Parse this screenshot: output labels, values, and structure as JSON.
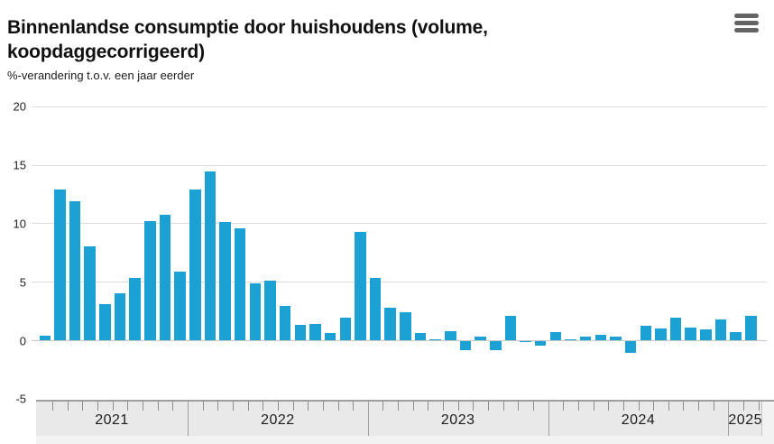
{
  "header": {
    "title": "Binnenlandse consumptie door huishoudens (volume, koopdaggecorrigeerd)",
    "menu_label": "menu"
  },
  "chart_data": {
    "type": "bar",
    "title": "Binnenlandse consumptie door huishoudens (volume, koopdaggecorrigeerd)",
    "subtitle": "%-verandering t.o.v. een jaar eerder",
    "unit": "%",
    "grid": true,
    "legend": "none",
    "bar_color": "#1ba1d4",
    "ylim": [
      -5,
      20
    ],
    "y_ticks": [
      20,
      15,
      10,
      5,
      0,
      -5
    ],
    "x_year_labels": [
      "2021",
      "2022",
      "2023",
      "2024",
      "2025"
    ],
    "x": [
      "2021-03",
      "2021-04",
      "2021-05",
      "2021-06",
      "2021-07",
      "2021-08",
      "2021-09",
      "2021-10",
      "2021-11",
      "2021-12",
      "2022-01",
      "2022-02",
      "2022-03",
      "2022-04",
      "2022-05",
      "2022-06",
      "2022-07",
      "2022-08",
      "2022-09",
      "2022-10",
      "2022-11",
      "2022-12",
      "2023-01",
      "2023-02",
      "2023-03",
      "2023-04",
      "2023-05",
      "2023-06",
      "2023-07",
      "2023-08",
      "2023-09",
      "2023-10",
      "2023-11",
      "2023-12",
      "2024-01",
      "2024-02",
      "2024-03",
      "2024-04",
      "2024-05",
      "2024-06",
      "2024-07",
      "2024-08",
      "2024-09",
      "2024-10",
      "2024-11",
      "2024-12",
      "2025-01",
      "2025-02"
    ],
    "values": [
      0.4,
      12.9,
      11.9,
      8.0,
      3.1,
      4.0,
      5.3,
      10.2,
      10.7,
      5.9,
      12.9,
      14.4,
      10.1,
      9.6,
      4.9,
      5.1,
      2.9,
      1.3,
      1.4,
      0.6,
      1.9,
      9.3,
      5.3,
      2.8,
      2.4,
      0.6,
      0.1,
      0.8,
      -0.8,
      0.3,
      -0.8,
      2.1,
      -0.1,
      -0.4,
      0.7,
      0.1,
      0.3,
      0.5,
      0.3,
      -1.0,
      1.2,
      1.0,
      1.9,
      1.1,
      0.9,
      1.8,
      0.7,
      2.1
    ]
  }
}
